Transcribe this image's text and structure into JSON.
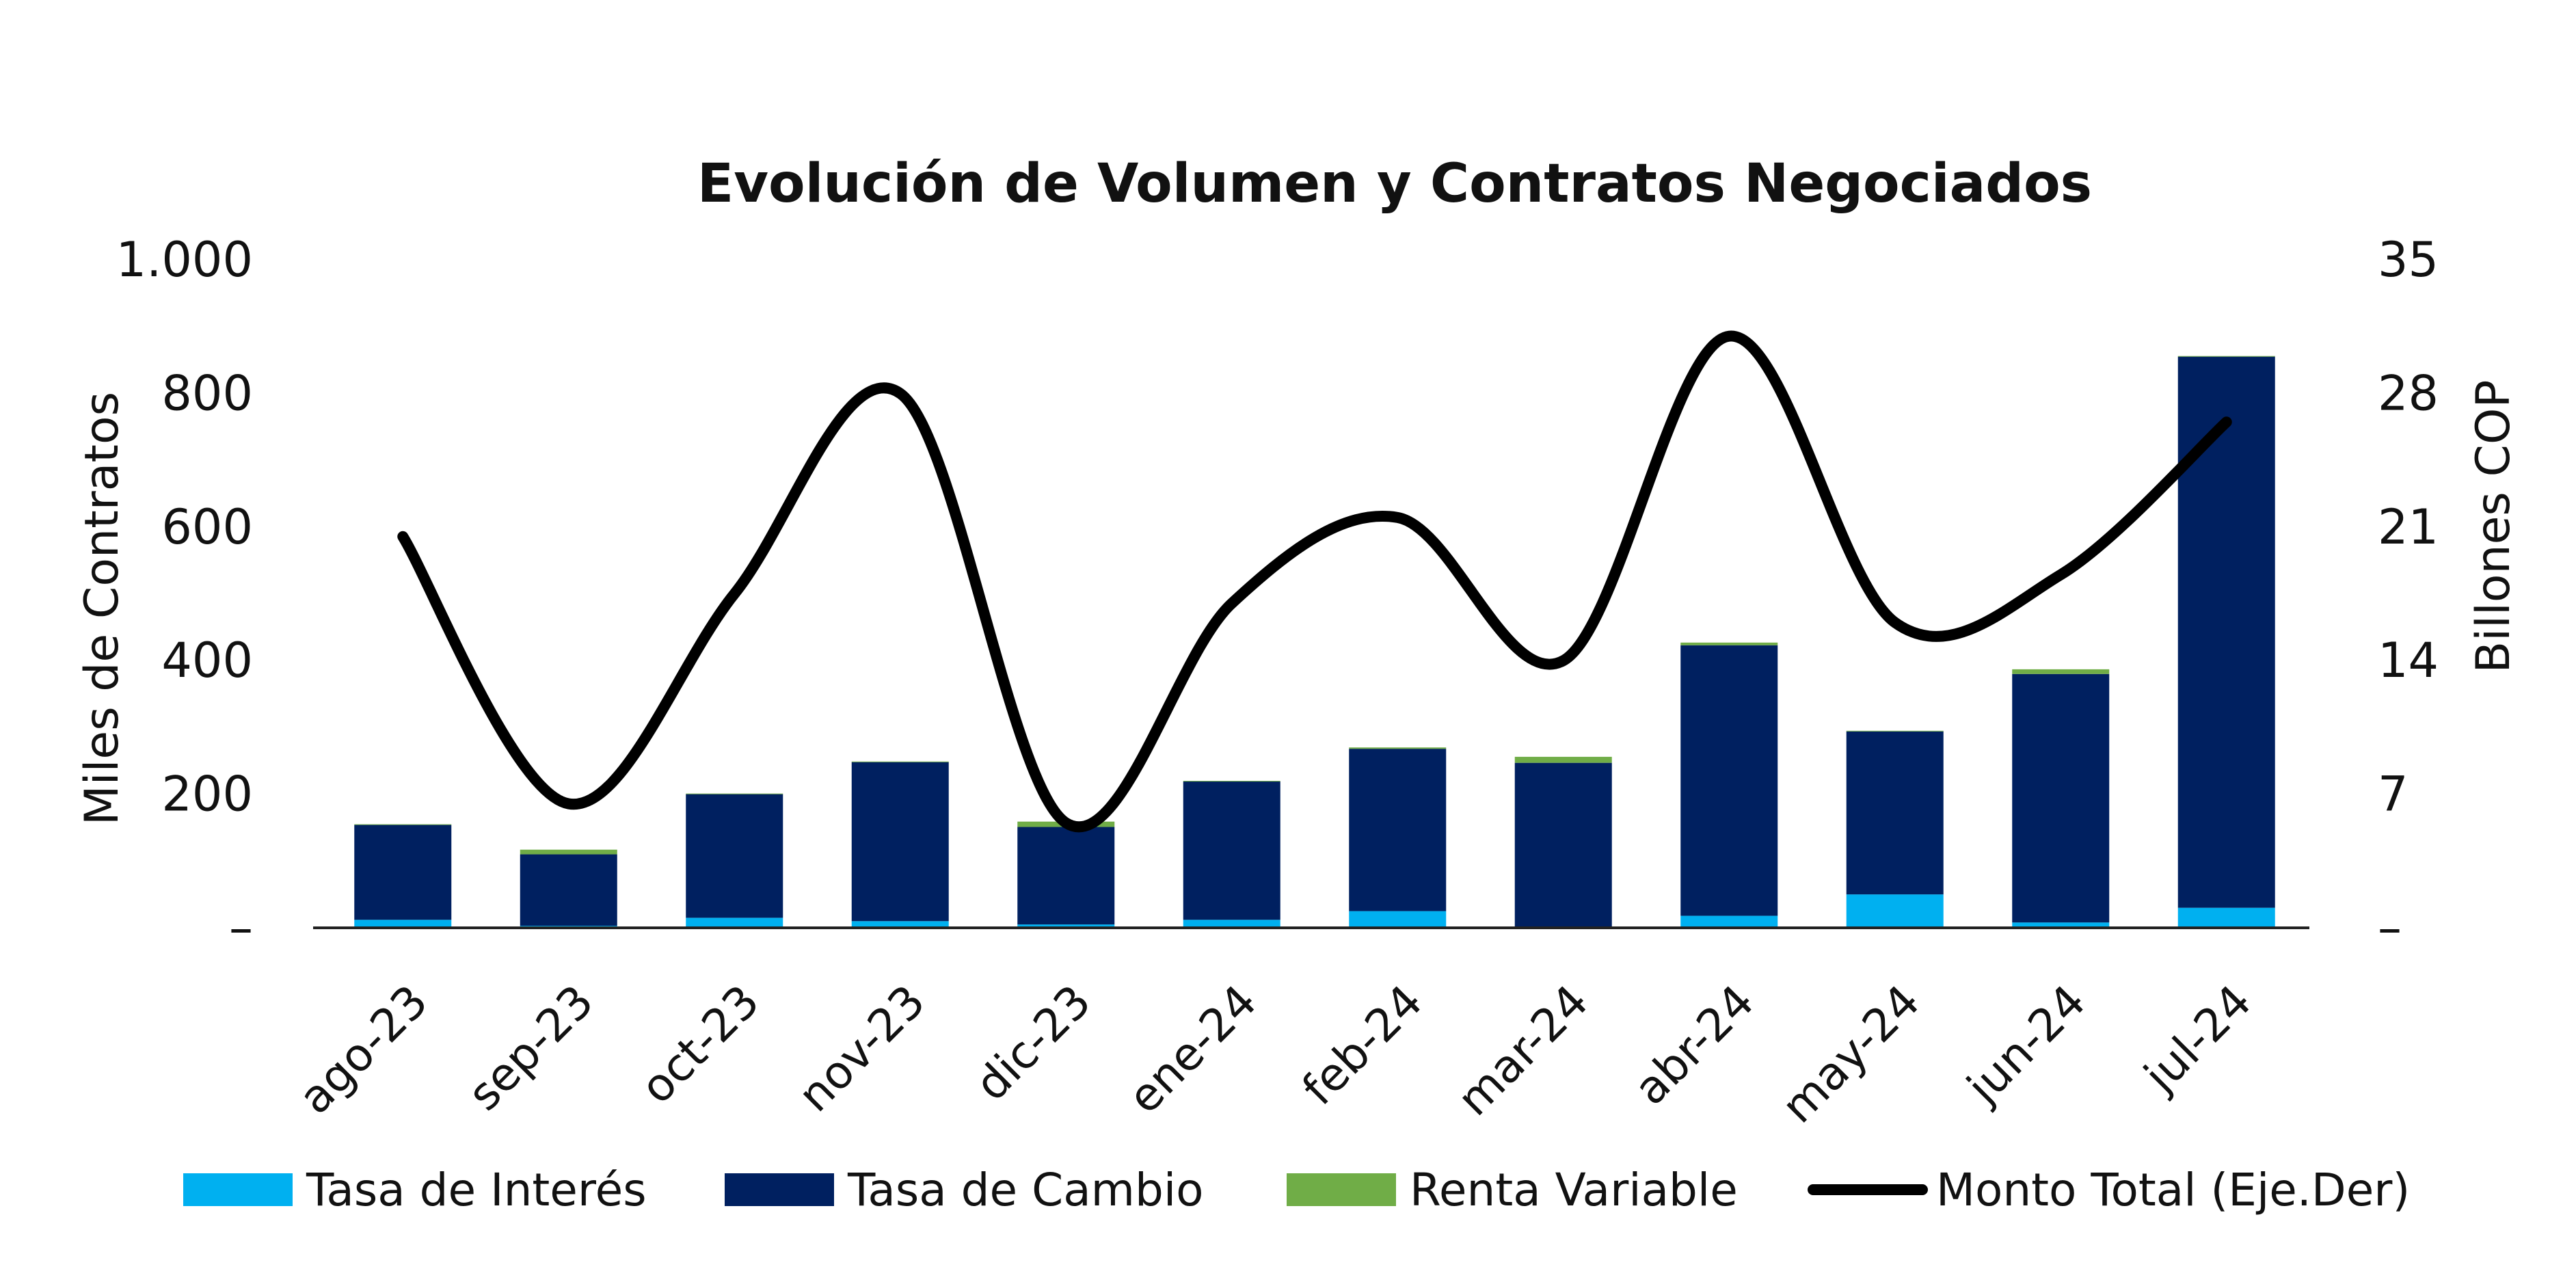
{
  "chart_data": {
    "type": "bar",
    "stacked": true,
    "title": "Evolución de Volumen y Contratos Negociados",
    "ylabel": "Miles de Contratos",
    "y2label": "Billones COP",
    "ylim": [
      0,
      1000
    ],
    "y2lim": [
      0,
      35
    ],
    "yticks": [
      "–",
      "200",
      "400",
      "600",
      "800",
      "1.000"
    ],
    "y2ticks": [
      "–",
      "7",
      "14",
      "21",
      "28",
      "35"
    ],
    "categories": [
      "ago-23",
      "sep-23",
      "oct-23",
      "nov-23",
      "dic-23",
      "ene-24",
      "feb-24",
      "mar-24",
      "abr-24",
      "may-24",
      "jun-24",
      "jul-24"
    ],
    "series": [
      {
        "name": "Tasa de Interés",
        "kind": "bar",
        "axis": "left",
        "color": "#00b0f0",
        "values": [
          12,
          3,
          15,
          10,
          5,
          12,
          25,
          2,
          18,
          50,
          8,
          30
        ]
      },
      {
        "name": "Tasa de Cambio",
        "kind": "bar",
        "axis": "left",
        "color": "#002060",
        "values": [
          142,
          107,
          185,
          238,
          146,
          207,
          243,
          245,
          405,
          244,
          372,
          825
        ]
      },
      {
        "name": "Renta Variable",
        "kind": "bar",
        "axis": "left",
        "color": "#70ad47",
        "values": [
          1,
          7,
          1,
          1,
          8,
          1,
          2,
          9,
          4,
          1,
          7,
          1
        ]
      },
      {
        "name": "Monto Total (Eje.Der)",
        "kind": "line",
        "axis": "right",
        "color": "#000000",
        "values": [
          20.5,
          6.5,
          17.5,
          28.0,
          5.5,
          17.0,
          21.5,
          14.0,
          31.0,
          16.0,
          18.5,
          26.5
        ]
      }
    ],
    "legend_position": "bottom"
  }
}
